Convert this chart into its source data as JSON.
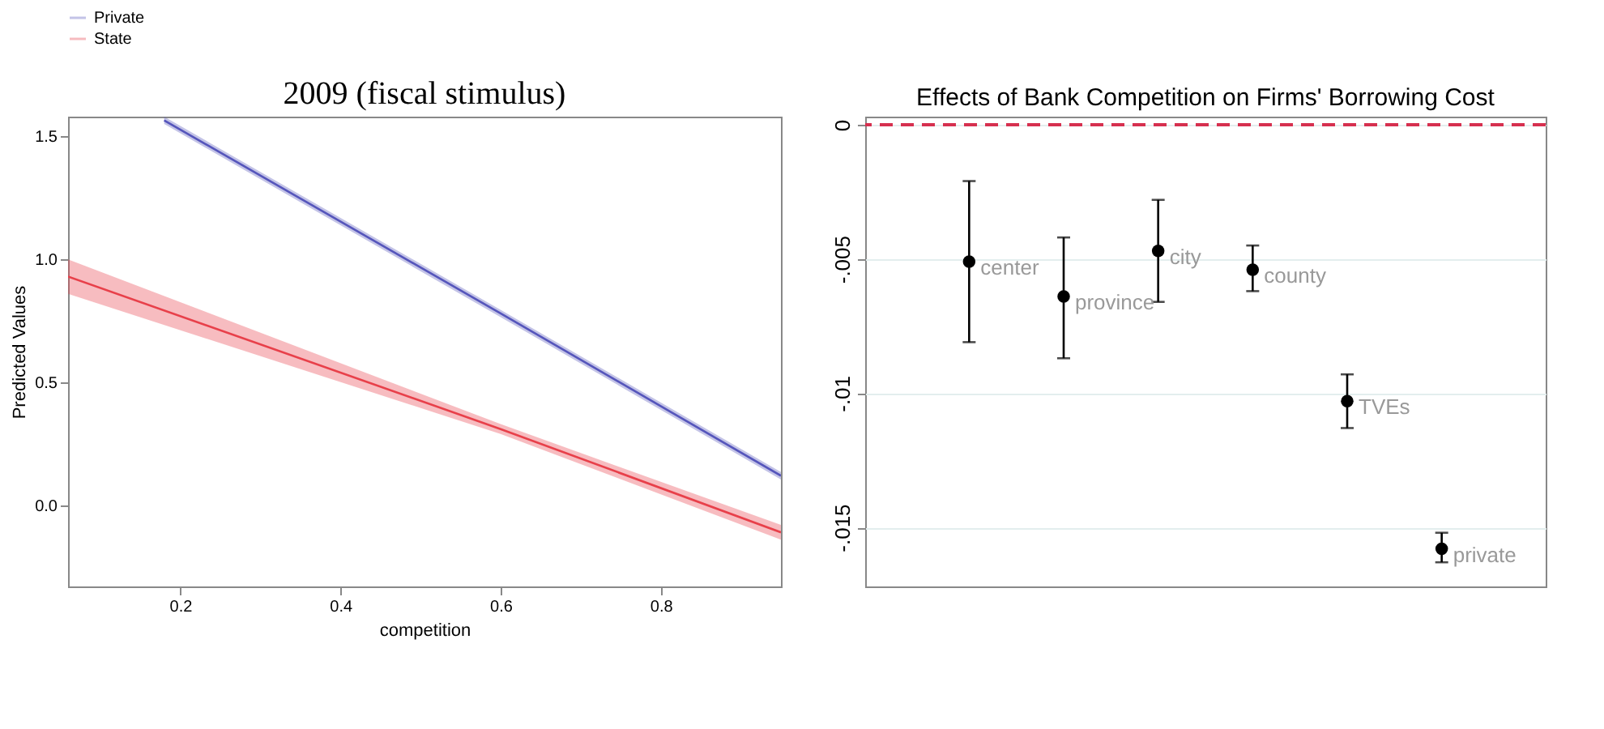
{
  "chart_data": [
    {
      "type": "line",
      "title": "2009 (fiscal stimulus)",
      "xlabel": "competition",
      "ylabel": "Predicted Values",
      "xlim": [
        0.06,
        0.95
      ],
      "ylim": [
        -0.33,
        1.58
      ],
      "xticks": [
        0.2,
        0.4,
        0.6,
        0.8
      ],
      "yticks": [
        {
          "value": 0,
          "label": "0.0"
        },
        0.5,
        {
          "value": 1,
          "label": "1.0"
        },
        1.5
      ],
      "legend": "top",
      "grid": false,
      "line_style": "solid",
      "series": [
        {
          "name": "Private",
          "color": "#5555bb",
          "x": [
            0.18,
            0.6,
            0.95
          ],
          "values": [
            1.565,
            0.78,
            0.12
          ],
          "lower": [
            1.55,
            0.765,
            0.105
          ],
          "upper": [
            1.58,
            0.795,
            0.135
          ]
        },
        {
          "name": "State",
          "color": "#e8404a",
          "x": [
            0.06,
            0.6,
            0.95
          ],
          "values": [
            0.93,
            0.31,
            -0.11
          ],
          "lower": [
            0.86,
            0.29,
            -0.14
          ],
          "upper": [
            1.0,
            0.33,
            -0.08
          ]
        }
      ]
    },
    {
      "type": "scatter",
      "title": "Effects of Bank Competition on Firms' Borrowing Cost",
      "categories": [
        null,
        null,
        null,
        null,
        null,
        null
      ],
      "marker": "circle",
      "ylim": [
        -0.0172,
        0.0003
      ],
      "yticks": [
        {
          "value": 0,
          "label": "0"
        },
        {
          "value": -0.005,
          "label": "-.005"
        },
        {
          "value": -0.01,
          "label": "-.01"
        },
        {
          "value": -0.015,
          "label": "-.015"
        }
      ],
      "grid": "y",
      "tick_labels": "y",
      "ref_lines": [
        {
          "axis": "y",
          "value": 0,
          "label": null,
          "color": "#d6304f",
          "line_style": "dashed"
        }
      ],
      "series": [
        {
          "name": "center",
          "color": "#000000",
          "values": [
            -0.0051,
            null,
            null,
            null,
            null,
            null
          ],
          "errors": [
            [
              -0.0081,
              -0.0021
            ],
            null,
            null,
            null,
            null,
            null
          ]
        },
        {
          "name": "province",
          "color": "#000000",
          "values": [
            null,
            -0.0064,
            null,
            null,
            null,
            null
          ],
          "errors": [
            null,
            [
              -0.0087,
              -0.0042
            ],
            null,
            null,
            null,
            null
          ]
        },
        {
          "name": "city",
          "color": "#000000",
          "values": [
            null,
            null,
            -0.0047,
            null,
            null,
            null
          ],
          "errors": [
            null,
            null,
            [
              -0.0066,
              -0.0028
            ],
            null,
            null,
            null
          ]
        },
        {
          "name": "county",
          "color": "#000000",
          "values": [
            null,
            null,
            null,
            -0.0054,
            null,
            null
          ],
          "errors": [
            null,
            null,
            null,
            [
              -0.0062,
              -0.0045
            ],
            null,
            null
          ]
        },
        {
          "name": "TVEs",
          "color": "#000000",
          "values": [
            null,
            null,
            null,
            null,
            -0.0103,
            null
          ],
          "errors": [
            null,
            null,
            null,
            null,
            [
              -0.0113,
              -0.0093
            ],
            null
          ]
        },
        {
          "name": "private",
          "color": "#000000",
          "values": [
            null,
            null,
            null,
            null,
            null,
            -0.0158
          ],
          "errors": [
            null,
            null,
            null,
            null,
            null,
            [
              -0.0163,
              -0.0152
            ]
          ]
        }
      ]
    }
  ]
}
